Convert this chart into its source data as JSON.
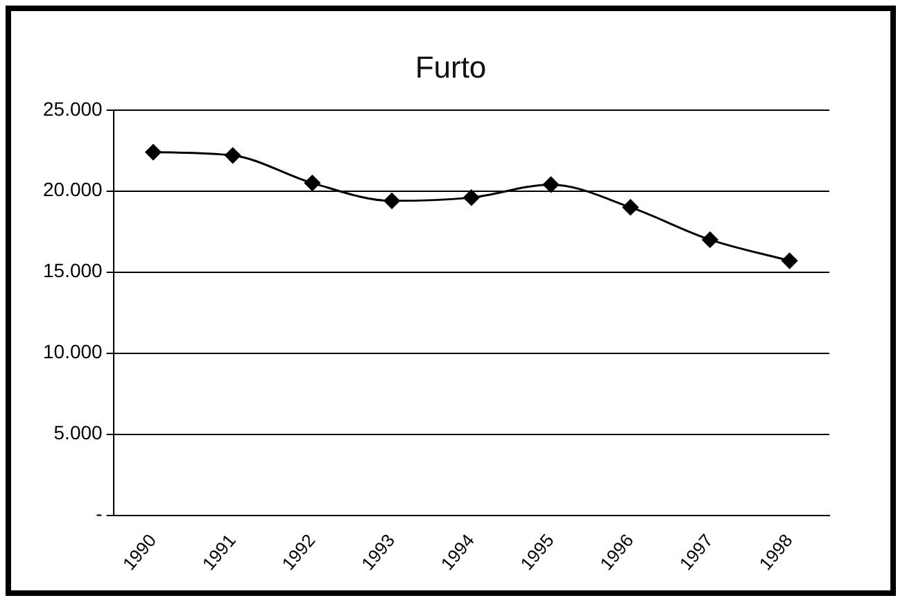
{
  "chart_data": {
    "type": "line",
    "title": "Furto",
    "categories": [
      "1990",
      "1991",
      "1992",
      "1993",
      "1994",
      "1995",
      "1996",
      "1997",
      "1998"
    ],
    "series": [
      {
        "color": "#000000",
        "values": [
          22400,
          22200,
          20500,
          19400,
          19600,
          20400,
          19000,
          17000,
          15700
        ]
      }
    ],
    "ylim": [
      0,
      25000
    ],
    "yticks": [
      {
        "value": 0,
        "label": "-"
      },
      {
        "value": 5000,
        "label": "5.000"
      },
      {
        "value": 10000,
        "label": "10.000"
      },
      {
        "value": 15000,
        "label": "15.000"
      },
      {
        "value": 20000,
        "label": "20.000"
      },
      {
        "value": 25000,
        "label": "25.000"
      }
    ],
    "grid": "y",
    "legend": false,
    "marker": "diamond",
    "line_style": "solid"
  }
}
